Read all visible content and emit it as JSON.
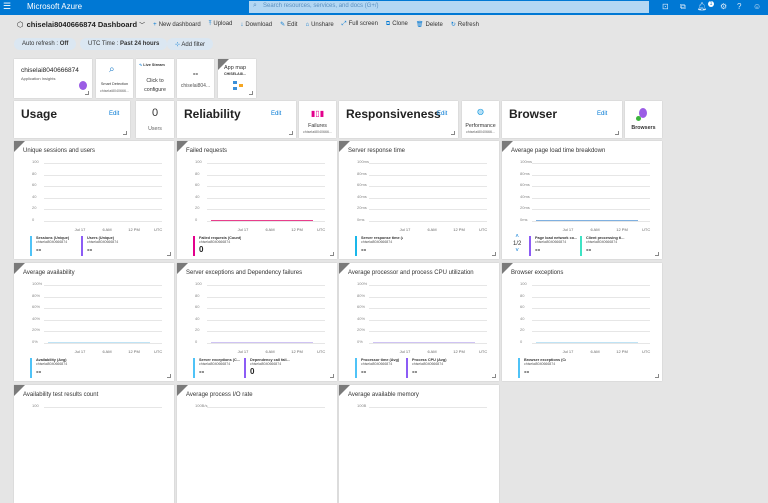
{
  "topbar": {
    "brand": "Microsoft Azure",
    "search_placeholder": "Search resources, services, and docs (G+/)",
    "notification_count": "1"
  },
  "header": {
    "title": "chiselai8040666874 Dashboard",
    "toolbar": [
      "New dashboard",
      "Upload",
      "Download",
      "Edit",
      "Unshare",
      "Full screen",
      "Clone",
      "Delete",
      "Refresh"
    ]
  },
  "filters": {
    "auto_refresh_label": "Auto refresh :",
    "auto_refresh_value": "Off",
    "time_label": "UTC Time :",
    "time_value": "Past 24 hours",
    "add_filter": "Add filter"
  },
  "resource": "chiselai8040666874",
  "tiles": {
    "app_insights": {
      "name": "chiselai8040666874",
      "sub": "Application Insights"
    },
    "smart_detection": {
      "label": "Smart Detection",
      "sub": "chiselai8040666..."
    },
    "live_stream": {
      "header": "Live Stream",
      "label1": "Click to",
      "label2": "configure"
    },
    "metric": {
      "value": "--",
      "sub": "chiselai804..."
    },
    "app_map": {
      "label": "App map",
      "sub": "CHISELAI8..."
    },
    "usage": {
      "title": "Usage",
      "edit": "Edit"
    },
    "users": {
      "value": "0",
      "label": "Users"
    },
    "reliability": {
      "title": "Reliability",
      "edit": "Edit"
    },
    "failures": {
      "label": "Failures",
      "sub": "chiselai8040666..."
    },
    "responsiveness": {
      "title": "Responsiveness",
      "edit": "Edit"
    },
    "performance": {
      "label": "Performance",
      "sub": "chiselai8040666..."
    },
    "browser": {
      "title": "Browser",
      "edit": "Edit"
    },
    "browsers": {
      "label": "Browsers"
    }
  },
  "x_ticks": [
    "Jul 17",
    "6 AM",
    "12 PM",
    "UTC"
  ],
  "charts": [
    {
      "title": "Unique sessions and users",
      "y_ticks": [
        "100",
        "80",
        "60",
        "40",
        "20",
        "0"
      ],
      "legend": [
        {
          "label": "Sessions (Unique)",
          "resource": "chiselai8040666874",
          "value": "--",
          "color": "#4fc3f7"
        },
        {
          "label": "Users (Unique)",
          "resource": "chiselai8040666874",
          "value": "--",
          "color": "#8c5cf5"
        }
      ]
    },
    {
      "title": "Failed requests",
      "y_ticks": [
        "100",
        "80",
        "60",
        "40",
        "20",
        "0"
      ],
      "line_color": "#e83e8c",
      "legend": [
        {
          "label": "Failed requests (Count)",
          "resource": "chiselai8040666874",
          "value": "0",
          "color": "#e3008c"
        }
      ]
    },
    {
      "title": "Server response time",
      "y_ticks": [
        "100ms",
        "80ms",
        "60ms",
        "40ms",
        "20ms",
        "0ms"
      ],
      "legend": [
        {
          "label": "Server response time (Avg)",
          "resource": "chiselai8040666874",
          "value": "--",
          "color": "#1ab7ea"
        }
      ]
    },
    {
      "title": "Average page load time breakdown",
      "y_ticks": [
        "100ms",
        "80ms",
        "60ms",
        "40ms",
        "20ms",
        "0ms"
      ],
      "line_color": "#7fb0e0",
      "pager": "1/2",
      "legend": [
        {
          "label": "Page load network co...",
          "resource": "chiselai8040666874",
          "value": "--",
          "color": "#8c5cf5"
        },
        {
          "label": "Client processing ti...",
          "resource": "chiselai8040666874",
          "value": "--",
          "color": "#3ee3c4"
        }
      ]
    },
    {
      "title": "Average availability",
      "y_ticks": [
        "100%",
        "80%",
        "60%",
        "40%",
        "20%",
        "0%"
      ],
      "line_color": "#bfe3f5",
      "legend": [
        {
          "label": "Availability (Avg)",
          "resource": "chiselai8040666874",
          "value": "--",
          "color": "#4fc3f7"
        }
      ]
    },
    {
      "title": "Server exceptions and Dependency failures",
      "y_ticks": [
        "100",
        "80",
        "60",
        "40",
        "20",
        "0"
      ],
      "line_color": "#cfc3f3",
      "legend": [
        {
          "label": "Server exceptions (C...",
          "resource": "chiselai8040666874",
          "value": "--",
          "color": "#4fc3f7"
        },
        {
          "label": "Dependency call fail...",
          "resource": "chiselai8040666874",
          "value": "0",
          "color": "#8c5cf5"
        }
      ]
    },
    {
      "title": "Average processor and process CPU utilization",
      "y_ticks": [
        "100%",
        "80%",
        "60%",
        "40%",
        "20%",
        "0%"
      ],
      "line_color": "#cfc3f3",
      "legend": [
        {
          "label": "Processor time (Avg)",
          "resource": "chiselai8040666874",
          "value": "--",
          "color": "#4fc3f7"
        },
        {
          "label": "Process CPU (Avg)",
          "resource": "chiselai8040666874",
          "value": "--",
          "color": "#8c5cf5"
        }
      ]
    },
    {
      "title": "Browser exceptions",
      "y_ticks": [
        "100",
        "80",
        "60",
        "40",
        "20",
        "0"
      ],
      "line_color": "#bfe3f5",
      "legend": [
        {
          "label": "Browser exceptions (Count)",
          "resource": "chiselai8040666874",
          "value": "--",
          "color": "#4fc3f7"
        }
      ]
    },
    {
      "title": "Availability test results count",
      "y_ticks": [
        "100"
      ]
    },
    {
      "title": "Average process I/O rate",
      "y_ticks": [
        "100B/s"
      ]
    },
    {
      "title": "Average available memory",
      "y_ticks": [
        "100B"
      ]
    }
  ]
}
